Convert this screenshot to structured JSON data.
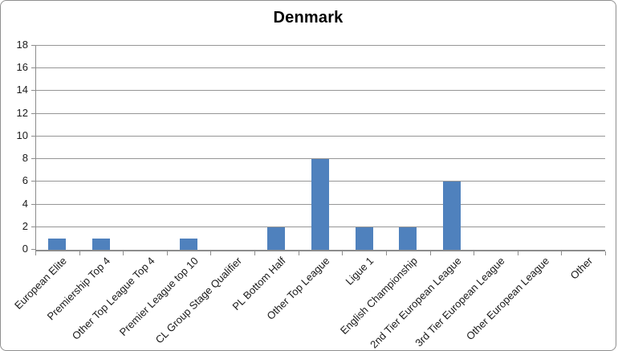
{
  "chart_data": {
    "type": "bar",
    "title": "Denmark",
    "categories": [
      "European Elite",
      "Premiership Top 4",
      "Other Top League Top 4",
      "Premier League top 10",
      "CL Group Stage Qualifier",
      "PL Bottom Half",
      "Other Top League",
      "Ligue 1",
      "English Championship",
      "2nd Tier European League",
      "3rd Tier European League",
      "Other European League",
      "Other"
    ],
    "values": [
      1,
      1,
      0,
      1,
      0,
      2,
      8,
      2,
      2,
      6,
      0,
      0,
      0
    ],
    "xlabel": "",
    "ylabel": "",
    "ylim": [
      0,
      18
    ],
    "ytick_step": 2,
    "ytick_labels": [
      "0",
      "2",
      "4",
      "6",
      "8",
      "10",
      "12",
      "14",
      "16",
      "18"
    ],
    "grid": "horizontal",
    "legend": false,
    "colors": {
      "bar": "#4F81BD",
      "gridline": "#969696",
      "axis": "#8C8C8C",
      "text": "#1A1A1A",
      "frame_border": "#8F8F8F",
      "background": "#FFFFFF",
      "title": "#000000"
    }
  }
}
